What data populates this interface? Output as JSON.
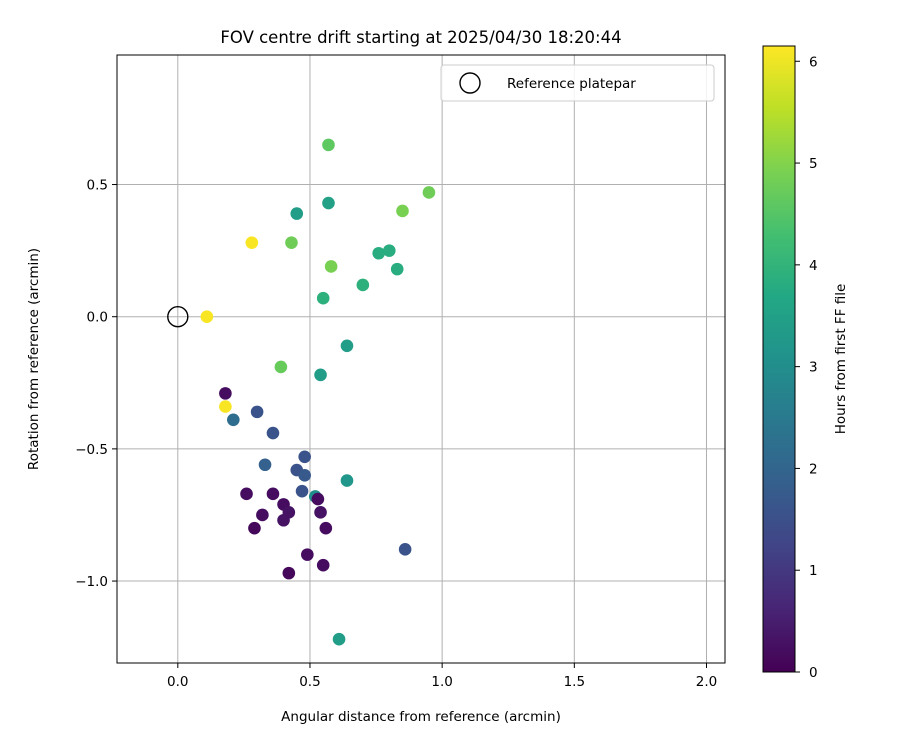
{
  "chart_data": {
    "type": "scatter",
    "title": "FOV centre drift starting at 2025/04/30 18:20:44",
    "xlabel": "Angular distance from reference (arcmin)",
    "ylabel": "Rotation from reference (arcmin)",
    "xlim": [
      -0.23,
      2.07
    ],
    "ylim": [
      -1.31,
      0.99
    ],
    "xticks": [
      0.0,
      0.5,
      1.0,
      1.5,
      2.0
    ],
    "xtick_labels": [
      "0.0",
      "0.5",
      "1.0",
      "1.5",
      "2.0"
    ],
    "yticks": [
      0.5,
      0.0,
      -0.5,
      -1.0
    ],
    "ytick_labels": [
      "0.5",
      "0.0",
      "−0.5",
      "−1.0"
    ],
    "grid": true,
    "legend": {
      "position": "top-right",
      "entries": [
        "Reference platepar"
      ]
    },
    "reference_point": {
      "x": 0.0,
      "y": 0.0,
      "name": "Reference platepar"
    },
    "colorbar": {
      "label": "Hours from first FF file",
      "min": 0,
      "max": 6.15,
      "ticks": [
        0,
        1,
        2,
        3,
        4,
        5,
        6
      ],
      "tick_labels": [
        "0",
        "1",
        "2",
        "3",
        "4",
        "5",
        "6"
      ],
      "colormap": "viridis"
    },
    "points": [
      {
        "x": 0.57,
        "y": 0.65,
        "c": 4.6
      },
      {
        "x": 0.95,
        "y": 0.47,
        "c": 4.8
      },
      {
        "x": 0.85,
        "y": 0.4,
        "c": 4.9
      },
      {
        "x": 0.45,
        "y": 0.39,
        "c": 3.4
      },
      {
        "x": 0.57,
        "y": 0.43,
        "c": 3.5
      },
      {
        "x": 0.28,
        "y": 0.28,
        "c": 6.1
      },
      {
        "x": 0.43,
        "y": 0.28,
        "c": 4.8
      },
      {
        "x": 0.76,
        "y": 0.24,
        "c": 3.8
      },
      {
        "x": 0.8,
        "y": 0.25,
        "c": 3.8
      },
      {
        "x": 0.58,
        "y": 0.19,
        "c": 4.9
      },
      {
        "x": 0.83,
        "y": 0.18,
        "c": 3.8
      },
      {
        "x": 0.7,
        "y": 0.12,
        "c": 3.9
      },
      {
        "x": 0.55,
        "y": 0.07,
        "c": 3.9
      },
      {
        "x": 0.11,
        "y": 0.0,
        "c": 6.1
      },
      {
        "x": 0.64,
        "y": -0.11,
        "c": 3.4
      },
      {
        "x": 0.39,
        "y": -0.19,
        "c": 4.7
      },
      {
        "x": 0.54,
        "y": -0.22,
        "c": 3.4
      },
      {
        "x": 0.18,
        "y": -0.29,
        "c": 0.2
      },
      {
        "x": 0.18,
        "y": -0.34,
        "c": 6.1
      },
      {
        "x": 0.3,
        "y": -0.36,
        "c": 1.6
      },
      {
        "x": 0.21,
        "y": -0.39,
        "c": 2.2
      },
      {
        "x": 0.36,
        "y": -0.44,
        "c": 1.6
      },
      {
        "x": 0.48,
        "y": -0.53,
        "c": 1.6
      },
      {
        "x": 0.33,
        "y": -0.56,
        "c": 1.9
      },
      {
        "x": 0.45,
        "y": -0.58,
        "c": 1.6
      },
      {
        "x": 0.48,
        "y": -0.6,
        "c": 1.7
      },
      {
        "x": 0.64,
        "y": -0.62,
        "c": 3.2
      },
      {
        "x": 0.47,
        "y": -0.66,
        "c": 1.6
      },
      {
        "x": 0.26,
        "y": -0.67,
        "c": 0.2
      },
      {
        "x": 0.36,
        "y": -0.67,
        "c": 0.2
      },
      {
        "x": 0.52,
        "y": -0.68,
        "c": 3.0
      },
      {
        "x": 0.53,
        "y": -0.69,
        "c": 0.2
      },
      {
        "x": 0.4,
        "y": -0.71,
        "c": 0.2
      },
      {
        "x": 0.42,
        "y": -0.74,
        "c": 0.3
      },
      {
        "x": 0.54,
        "y": -0.74,
        "c": 0.3
      },
      {
        "x": 0.32,
        "y": -0.75,
        "c": 0.2
      },
      {
        "x": 0.4,
        "y": -0.77,
        "c": 0.3
      },
      {
        "x": 0.56,
        "y": -0.8,
        "c": 0.2
      },
      {
        "x": 0.29,
        "y": -0.8,
        "c": 0.1
      },
      {
        "x": 0.86,
        "y": -0.88,
        "c": 1.6
      },
      {
        "x": 0.49,
        "y": -0.9,
        "c": 0.2
      },
      {
        "x": 0.55,
        "y": -0.94,
        "c": 0.2
      },
      {
        "x": 0.42,
        "y": -0.97,
        "c": 0.1
      },
      {
        "x": 0.61,
        "y": -1.22,
        "c": 3.4
      }
    ]
  }
}
